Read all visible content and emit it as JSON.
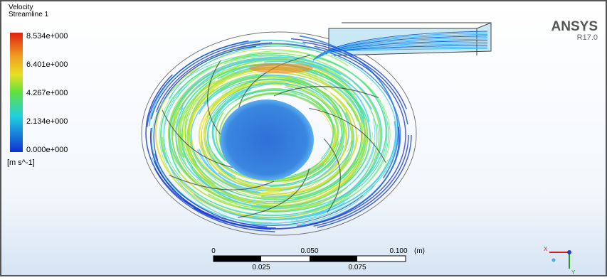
{
  "legend": {
    "title": "Velocity",
    "subtitle": "Streamline 1",
    "labels": [
      "8.534e+000",
      "6.401e+000",
      "4.267e+000",
      "2.134e+000",
      "0.000e+000"
    ],
    "unit": "[m s^-1]"
  },
  "logo": {
    "name": "ANSYS",
    "version": "R17.0"
  },
  "scale_bar": {
    "top_labels": [
      "0",
      "0.050",
      "0.100"
    ],
    "unit": "(m)",
    "bottom_labels": [
      "0.025",
      "0.075"
    ]
  },
  "triad": {
    "x": "X",
    "y": "Y"
  }
}
